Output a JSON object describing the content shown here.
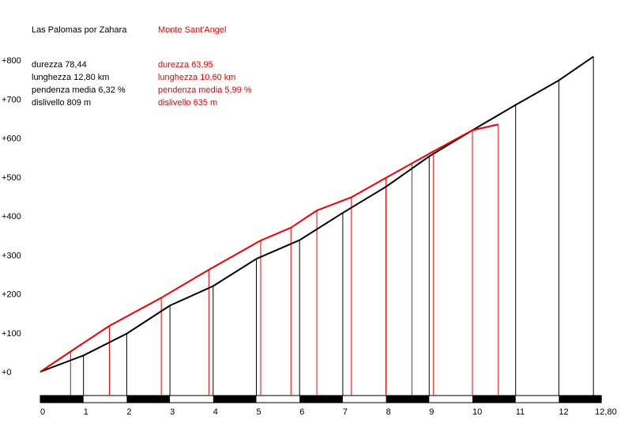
{
  "chart_data": {
    "type": "line",
    "title": "",
    "xlabel": "",
    "ylabel": "",
    "xlim": [
      0,
      12.8
    ],
    "ylim": [
      -40,
      809
    ],
    "grid": false,
    "legend": "top-left",
    "y_ticks": [
      {
        "value": 0,
        "label": "+0"
      },
      {
        "value": 100,
        "label": "+100"
      },
      {
        "value": 200,
        "label": "+200"
      },
      {
        "value": 300,
        "label": "+300"
      },
      {
        "value": 400,
        "label": "+400"
      },
      {
        "value": 500,
        "label": "+500"
      },
      {
        "value": 600,
        "label": "+600"
      },
      {
        "value": 700,
        "label": "+700"
      },
      {
        "value": 800,
        "label": "+800"
      }
    ],
    "x_ticks": [
      {
        "value": 0,
        "label": "0"
      },
      {
        "value": 1,
        "label": "1"
      },
      {
        "value": 2,
        "label": "2"
      },
      {
        "value": 3,
        "label": "3"
      },
      {
        "value": 4,
        "label": "4"
      },
      {
        "value": 5,
        "label": "5"
      },
      {
        "value": 6,
        "label": "6"
      },
      {
        "value": 7,
        "label": "7"
      },
      {
        "value": 8,
        "label": "8"
      },
      {
        "value": 9,
        "label": "9"
      },
      {
        "value": 10,
        "label": "10"
      },
      {
        "value": 11,
        "label": "11"
      },
      {
        "value": 12,
        "label": "12"
      },
      {
        "value": 12.8,
        "label": "12,80"
      }
    ],
    "series": [
      {
        "name": "Las Palomas por Zahara",
        "color": "#000000",
        "stats": [
          "durezza 78,44",
          "lunghezza 12,80 km",
          "pendenza media 6,32 %",
          "dislivello 809 m"
        ],
        "x": [
          0,
          1,
          2,
          3,
          4,
          5,
          6,
          7,
          8,
          9,
          10,
          11,
          12,
          12.8
        ],
        "y": [
          0,
          42,
          98,
          170,
          220,
          290,
          338,
          408,
          475,
          553,
          620,
          685,
          748,
          809
        ]
      },
      {
        "name": "Monte Sant'Angel",
        "color": "#ee0000",
        "stats": [
          "durezza 63,95",
          "lunghezza 10,60 km",
          "pendenza media 5,99 %",
          "dislivello 635 m"
        ],
        "x": [
          0,
          0.7,
          1.6,
          2.8,
          3.9,
          5.1,
          5.8,
          6.4,
          7.2,
          8.0,
          8.6,
          9.1,
          10.0,
          10.6
        ],
        "y": [
          0,
          52,
          118,
          190,
          262,
          337,
          370,
          414,
          448,
          498,
          535,
          566,
          620,
          635
        ]
      }
    ]
  }
}
